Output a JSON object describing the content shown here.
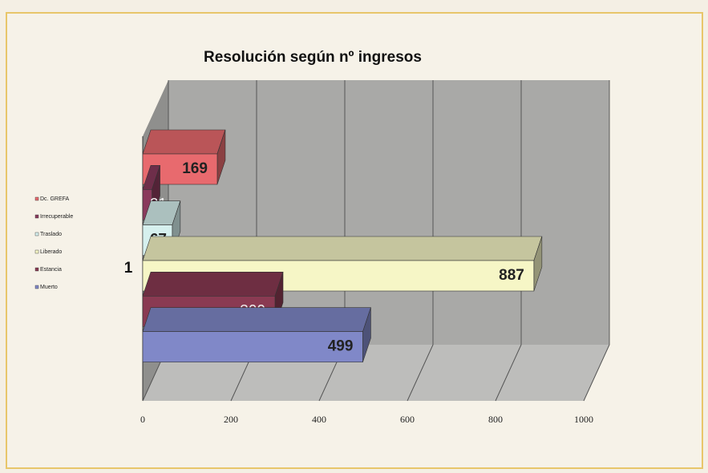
{
  "chart_data": {
    "type": "bar",
    "orientation": "horizontal",
    "three_d": true,
    "title": "Resolución según nº ingresos",
    "categories": [
      "1"
    ],
    "series": [
      {
        "name": "Dc. GREFA",
        "color": "#e86a6e",
        "values": [
          169
        ]
      },
      {
        "name": "Irrecuperable",
        "color": "#8a3a5c",
        "values": [
          21
        ]
      },
      {
        "name": "Traslado",
        "color": "#d6f0ee",
        "values": [
          67
        ]
      },
      {
        "name": "Liberado",
        "color": "#f6f6c6",
        "values": [
          887
        ]
      },
      {
        "name": "Estancia",
        "color": "#8a3a52",
        "values": [
          300
        ]
      },
      {
        "name": "Muerto",
        "color": "#8088c8",
        "values": [
          499
        ]
      }
    ],
    "xlim": [
      0,
      1000
    ],
    "xticks": [
      0,
      200,
      400,
      600,
      800,
      1000
    ],
    "grid": true
  }
}
